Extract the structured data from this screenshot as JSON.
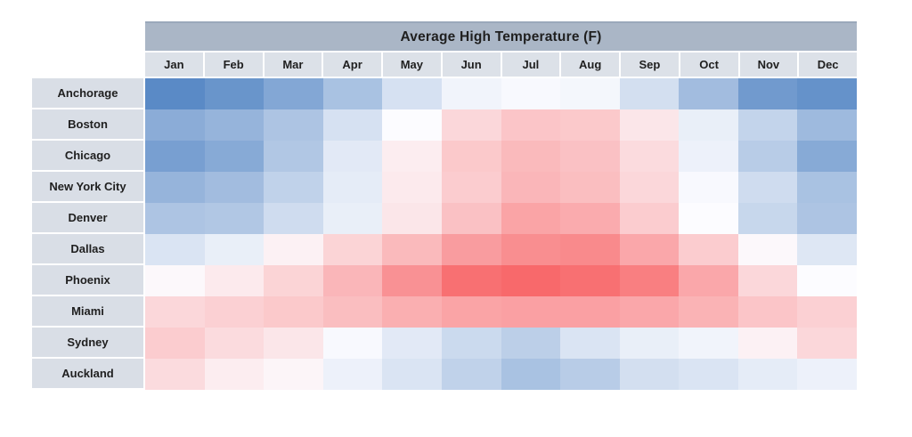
{
  "page": {
    "background": "#ffffff"
  },
  "chart_data": {
    "type": "heatmap",
    "title": "Average High Temperature (F)",
    "columns": [
      "Jan",
      "Feb",
      "Mar",
      "Apr",
      "May",
      "Jun",
      "Jul",
      "Aug",
      "Sep",
      "Oct",
      "Nov",
      "Dec"
    ],
    "rows": [
      "Anchorage",
      "Boston",
      "Chicago",
      "New York City",
      "Denver",
      "Dallas",
      "Phoenix",
      "Miami",
      "Sydney",
      "Auckland"
    ],
    "values": [
      [
        23,
        27,
        34,
        44,
        56,
        63,
        65,
        64,
        55,
        42,
        29,
        26
      ],
      [
        36,
        39,
        45,
        56,
        66,
        76,
        81,
        80,
        72,
        61,
        51,
        41
      ],
      [
        31,
        35,
        46,
        59,
        70,
        80,
        84,
        82,
        75,
        62,
        48,
        35
      ],
      [
        39,
        42,
        50,
        60,
        71,
        79,
        85,
        83,
        76,
        65,
        54,
        44
      ],
      [
        45,
        46,
        54,
        61,
        72,
        82,
        90,
        88,
        79,
        66,
        52,
        45
      ],
      [
        57,
        61,
        69,
        77,
        84,
        92,
        96,
        97,
        89,
        79,
        67,
        58
      ],
      [
        67,
        71,
        77,
        85,
        95,
        104,
        106,
        104,
        100,
        89,
        76,
        66
      ],
      [
        76,
        78,
        80,
        83,
        87,
        90,
        91,
        91,
        89,
        86,
        81,
        78
      ],
      [
        79,
        75,
        72,
        65,
        59,
        53,
        49,
        57,
        61,
        63,
        69,
        76
      ],
      [
        75,
        70,
        68,
        62,
        57,
        50,
        44,
        48,
        55,
        57,
        60,
        62
      ]
    ],
    "value_labels_visible": false,
    "legend": "none",
    "grid": "off",
    "color_scale": {
      "type": "3-color-diverging",
      "min_value": 23,
      "mid_value": 66,
      "max_value": 106,
      "min_color": "#5A8AC6",
      "mid_color": "#FCFCFF",
      "max_color": "#F8696B"
    }
  },
  "styles": {
    "title_bar_bg": "#AAB6C6",
    "title_bar_top_edge": "#9AA8BA",
    "header_cell_bg": "#DCE1E8",
    "row_label_bg": "#D9DEE6",
    "text_color": "#1F1F1F"
  }
}
